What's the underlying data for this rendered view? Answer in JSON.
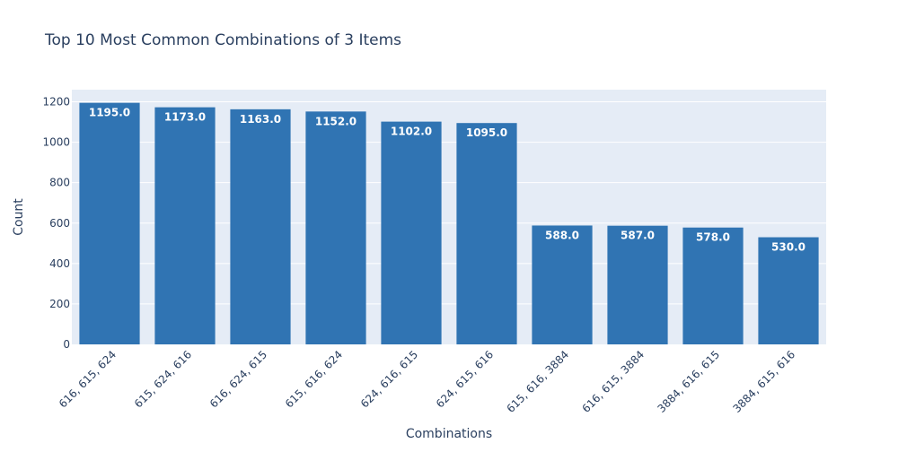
{
  "chart_data": {
    "type": "bar",
    "title": "Top 10 Most Common Combinations of 3 Items",
    "xlabel": "Combinations",
    "ylabel": "Count",
    "categories": [
      "616, 615, 624",
      "615, 624, 616",
      "616, 624, 615",
      "615, 616, 624",
      "624, 616, 615",
      "624, 615, 616",
      "615, 616, 3884",
      "616, 615, 3884",
      "3884, 616, 615",
      "3884, 615, 616"
    ],
    "values": [
      1195,
      1173,
      1163,
      1152,
      1102,
      1095,
      588,
      587,
      578,
      530
    ],
    "value_labels": [
      "1195.0",
      "1173.0",
      "1163.0",
      "1152.0",
      "1102.0",
      "1095.0",
      "588.0",
      "587.0",
      "578.0",
      "530.0"
    ],
    "ylim": [
      0,
      1260
    ],
    "yticks": [
      0,
      200,
      400,
      600,
      800,
      1000,
      1200
    ],
    "grid": true,
    "colors": {
      "bar": "#3074b3",
      "plot_bg": "#e5ecf6",
      "grid": "#ffffff",
      "text": "#2a3f5f",
      "label": "#ffffff"
    }
  }
}
